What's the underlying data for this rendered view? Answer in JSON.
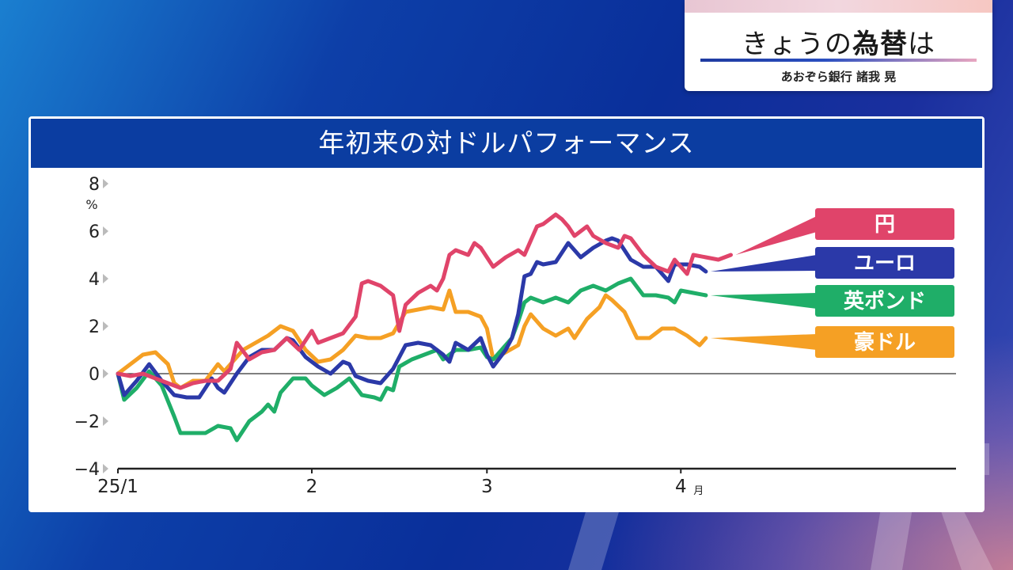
{
  "caption": {
    "title_pre": "きょうの",
    "title_bold": "為替",
    "title_post": "は",
    "subtitle": "あおぞら銀行 諸我 晃"
  },
  "chart_data": {
    "type": "line",
    "title": "年初来の対ドルパフォーマンス",
    "ylabel": "%",
    "ylim": [
      -4,
      8
    ],
    "yticks": [
      "8",
      "6",
      "4",
      "2",
      "0",
      "−2",
      "−4"
    ],
    "xlim": [
      0,
      134
    ],
    "xticks": [
      {
        "label": "25/1",
        "x": 0
      },
      {
        "label": "2",
        "x": 31
      },
      {
        "label": "3",
        "x": 59
      },
      {
        "label": "4",
        "x": 90
      }
    ],
    "x_unit": "月",
    "grid": false,
    "legend_placement": "right",
    "series": [
      {
        "name": "円",
        "color": "#e0446a",
        "points": [
          [
            0,
            0
          ],
          [
            2,
            -0.1
          ],
          [
            4,
            0
          ],
          [
            6,
            -0.2
          ],
          [
            8,
            -0.4
          ],
          [
            10,
            -0.6
          ],
          [
            12,
            -0.4
          ],
          [
            14,
            -0.3
          ],
          [
            16,
            -0.3
          ],
          [
            18,
            0.2
          ],
          [
            19,
            1.3
          ],
          [
            21,
            0.6
          ],
          [
            23,
            0.9
          ],
          [
            25,
            1.0
          ],
          [
            27,
            1.5
          ],
          [
            29,
            1.0
          ],
          [
            31,
            1.8
          ],
          [
            32,
            1.3
          ],
          [
            34,
            1.5
          ],
          [
            36,
            1.7
          ],
          [
            38,
            2.4
          ],
          [
            39,
            3.8
          ],
          [
            40,
            3.9
          ],
          [
            42,
            3.7
          ],
          [
            44,
            3.3
          ],
          [
            45,
            1.8
          ],
          [
            46,
            2.9
          ],
          [
            48,
            3.4
          ],
          [
            50,
            3.7
          ],
          [
            51,
            3.5
          ],
          [
            52,
            4.0
          ],
          [
            53,
            5.0
          ],
          [
            54,
            5.2
          ],
          [
            56,
            5.0
          ],
          [
            57,
            5.5
          ],
          [
            58,
            5.3
          ],
          [
            60,
            4.5
          ],
          [
            62,
            4.9
          ],
          [
            64,
            5.2
          ],
          [
            65,
            5.0
          ],
          [
            66,
            5.6
          ],
          [
            67,
            6.2
          ],
          [
            68,
            6.3
          ],
          [
            70,
            6.7
          ],
          [
            71,
            6.5
          ],
          [
            72,
            6.2
          ],
          [
            73,
            5.8
          ],
          [
            75,
            6.2
          ],
          [
            76,
            5.8
          ],
          [
            78,
            5.5
          ],
          [
            80,
            5.3
          ],
          [
            81,
            5.8
          ],
          [
            82,
            5.7
          ],
          [
            84,
            5.0
          ],
          [
            86,
            4.5
          ],
          [
            88,
            4.3
          ],
          [
            89,
            4.8
          ],
          [
            90,
            4.5
          ],
          [
            91,
            4.2
          ],
          [
            92,
            5.0
          ],
          [
            94,
            4.9
          ],
          [
            96,
            4.8
          ],
          [
            98,
            5.0
          ]
        ]
      },
      {
        "name": "ユーロ",
        "color": "#2b39a8",
        "points": [
          [
            0,
            0
          ],
          [
            1,
            -0.9
          ],
          [
            3,
            -0.3
          ],
          [
            5,
            0.4
          ],
          [
            7,
            -0.3
          ],
          [
            9,
            -0.9
          ],
          [
            11,
            -1.0
          ],
          [
            13,
            -1.0
          ],
          [
            15,
            -0.2
          ],
          [
            16,
            -0.6
          ],
          [
            17,
            -0.8
          ],
          [
            19,
            0.0
          ],
          [
            21,
            0.7
          ],
          [
            23,
            1.0
          ],
          [
            25,
            1.0
          ],
          [
            27,
            1.5
          ],
          [
            28,
            1.4
          ],
          [
            30,
            0.7
          ],
          [
            32,
            0.3
          ],
          [
            34,
            0.0
          ],
          [
            36,
            0.5
          ],
          [
            37,
            0.4
          ],
          [
            38,
            -0.1
          ],
          [
            40,
            -0.3
          ],
          [
            42,
            -0.4
          ],
          [
            44,
            0.2
          ],
          [
            46,
            1.2
          ],
          [
            48,
            1.3
          ],
          [
            50,
            1.2
          ],
          [
            52,
            0.8
          ],
          [
            53,
            0.5
          ],
          [
            54,
            1.3
          ],
          [
            56,
            1.0
          ],
          [
            58,
            1.5
          ],
          [
            59,
            0.8
          ],
          [
            60,
            0.3
          ],
          [
            62,
            1.0
          ],
          [
            63,
            1.5
          ],
          [
            64,
            2.5
          ],
          [
            65,
            4.1
          ],
          [
            66,
            4.2
          ],
          [
            67,
            4.7
          ],
          [
            68,
            4.6
          ],
          [
            70,
            4.7
          ],
          [
            72,
            5.5
          ],
          [
            73,
            5.2
          ],
          [
            74,
            4.9
          ],
          [
            76,
            5.3
          ],
          [
            78,
            5.6
          ],
          [
            79,
            5.7
          ],
          [
            80,
            5.6
          ],
          [
            82,
            4.8
          ],
          [
            84,
            4.5
          ],
          [
            86,
            4.5
          ],
          [
            88,
            3.9
          ],
          [
            89,
            4.6
          ],
          [
            91,
            4.6
          ],
          [
            93,
            4.5
          ],
          [
            94,
            4.3
          ]
        ]
      },
      {
        "name": "英ポンド",
        "color": "#1fae68",
        "points": [
          [
            0,
            0
          ],
          [
            1,
            -1.1
          ],
          [
            3,
            -0.6
          ],
          [
            5,
            0.1
          ],
          [
            7,
            -0.5
          ],
          [
            9,
            -1.8
          ],
          [
            10,
            -2.5
          ],
          [
            12,
            -2.5
          ],
          [
            14,
            -2.5
          ],
          [
            16,
            -2.2
          ],
          [
            18,
            -2.3
          ],
          [
            19,
            -2.8
          ],
          [
            21,
            -2.0
          ],
          [
            23,
            -1.6
          ],
          [
            24,
            -1.3
          ],
          [
            25,
            -1.6
          ],
          [
            26,
            -0.8
          ],
          [
            28,
            -0.2
          ],
          [
            30,
            -0.2
          ],
          [
            31,
            -0.5
          ],
          [
            33,
            -0.9
          ],
          [
            35,
            -0.6
          ],
          [
            37,
            -0.2
          ],
          [
            39,
            -0.9
          ],
          [
            41,
            -1.0
          ],
          [
            42,
            -1.1
          ],
          [
            43,
            -0.6
          ],
          [
            44,
            -0.7
          ],
          [
            45,
            0.3
          ],
          [
            47,
            0.6
          ],
          [
            49,
            0.8
          ],
          [
            51,
            1.0
          ],
          [
            52,
            0.6
          ],
          [
            54,
            1.0
          ],
          [
            56,
            1.0
          ],
          [
            58,
            1.1
          ],
          [
            59,
            0.7
          ],
          [
            60,
            0.6
          ],
          [
            62,
            1.2
          ],
          [
            63,
            1.5
          ],
          [
            64,
            2.2
          ],
          [
            65,
            3.0
          ],
          [
            66,
            3.2
          ],
          [
            68,
            3.0
          ],
          [
            70,
            3.2
          ],
          [
            72,
            3.0
          ],
          [
            74,
            3.5
          ],
          [
            76,
            3.7
          ],
          [
            78,
            3.5
          ],
          [
            80,
            3.8
          ],
          [
            82,
            4.0
          ],
          [
            84,
            3.3
          ],
          [
            86,
            3.3
          ],
          [
            88,
            3.2
          ],
          [
            89,
            3.0
          ],
          [
            90,
            3.5
          ],
          [
            92,
            3.4
          ],
          [
            94,
            3.3
          ]
        ]
      },
      {
        "name": "豪ドル",
        "color": "#f5a024",
        "points": [
          [
            0,
            0
          ],
          [
            2,
            0.4
          ],
          [
            4,
            0.8
          ],
          [
            6,
            0.9
          ],
          [
            8,
            0.4
          ],
          [
            9,
            -0.4
          ],
          [
            10,
            -0.6
          ],
          [
            12,
            -0.3
          ],
          [
            14,
            -0.3
          ],
          [
            16,
            0.4
          ],
          [
            17,
            0.1
          ],
          [
            18,
            0.4
          ],
          [
            20,
            1.0
          ],
          [
            22,
            1.3
          ],
          [
            24,
            1.6
          ],
          [
            26,
            2.0
          ],
          [
            28,
            1.8
          ],
          [
            30,
            1.0
          ],
          [
            32,
            0.5
          ],
          [
            34,
            0.6
          ],
          [
            36,
            1.0
          ],
          [
            38,
            1.6
          ],
          [
            40,
            1.5
          ],
          [
            42,
            1.5
          ],
          [
            44,
            1.7
          ],
          [
            46,
            2.6
          ],
          [
            48,
            2.7
          ],
          [
            50,
            2.8
          ],
          [
            52,
            2.7
          ],
          [
            53,
            3.5
          ],
          [
            54,
            2.6
          ],
          [
            56,
            2.6
          ],
          [
            58,
            2.4
          ],
          [
            59,
            1.9
          ],
          [
            60,
            0.6
          ],
          [
            62,
            0.9
          ],
          [
            64,
            1.2
          ],
          [
            65,
            2.0
          ],
          [
            66,
            2.5
          ],
          [
            68,
            1.9
          ],
          [
            70,
            1.6
          ],
          [
            72,
            1.9
          ],
          [
            73,
            1.5
          ],
          [
            75,
            2.3
          ],
          [
            77,
            2.8
          ],
          [
            78,
            3.3
          ],
          [
            79,
            3.1
          ],
          [
            81,
            2.6
          ],
          [
            83,
            1.5
          ],
          [
            85,
            1.5
          ],
          [
            87,
            1.9
          ],
          [
            89,
            1.9
          ],
          [
            91,
            1.6
          ],
          [
            93,
            1.2
          ],
          [
            94,
            1.5
          ]
        ]
      }
    ]
  }
}
